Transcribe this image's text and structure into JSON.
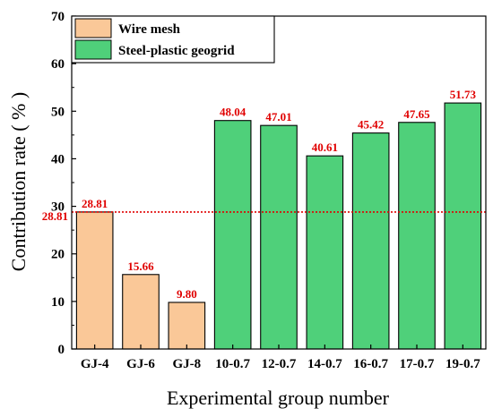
{
  "chart_data": {
    "type": "bar",
    "xlabel": "Experimental group number",
    "ylabel": "Contribution rate ( % )",
    "ylim": [
      0,
      70
    ],
    "yticks": [
      0,
      10,
      20,
      30,
      40,
      50,
      60,
      70
    ],
    "categories": [
      "GJ-4",
      "GJ-6",
      "GJ-8",
      "10-0.7",
      "12-0.7",
      "14-0.7",
      "16-0.7",
      "17-0.7",
      "19-0.7"
    ],
    "values": [
      28.81,
      15.66,
      9.8,
      48.04,
      47.01,
      40.61,
      45.42,
      47.65,
      51.73
    ],
    "data_labels": [
      "28.81",
      "15.66",
      "9.80",
      "48.04",
      "47.01",
      "40.61",
      "45.42",
      "47.65",
      "51.73"
    ],
    "series": [
      {
        "name": "Wire mesh",
        "color": "#FAC898",
        "indices": [
          0,
          1,
          2
        ]
      },
      {
        "name": "Steel-plastic geogrid",
        "color": "#4FD07A",
        "indices": [
          3,
          4,
          5,
          6,
          7,
          8
        ]
      }
    ],
    "reference_line": {
      "value": 28.81,
      "label": "28.81",
      "color": "#E00000",
      "style": "dotted"
    },
    "label_color": "#E00000",
    "legend": {
      "position": "top-left"
    },
    "grid": false
  }
}
